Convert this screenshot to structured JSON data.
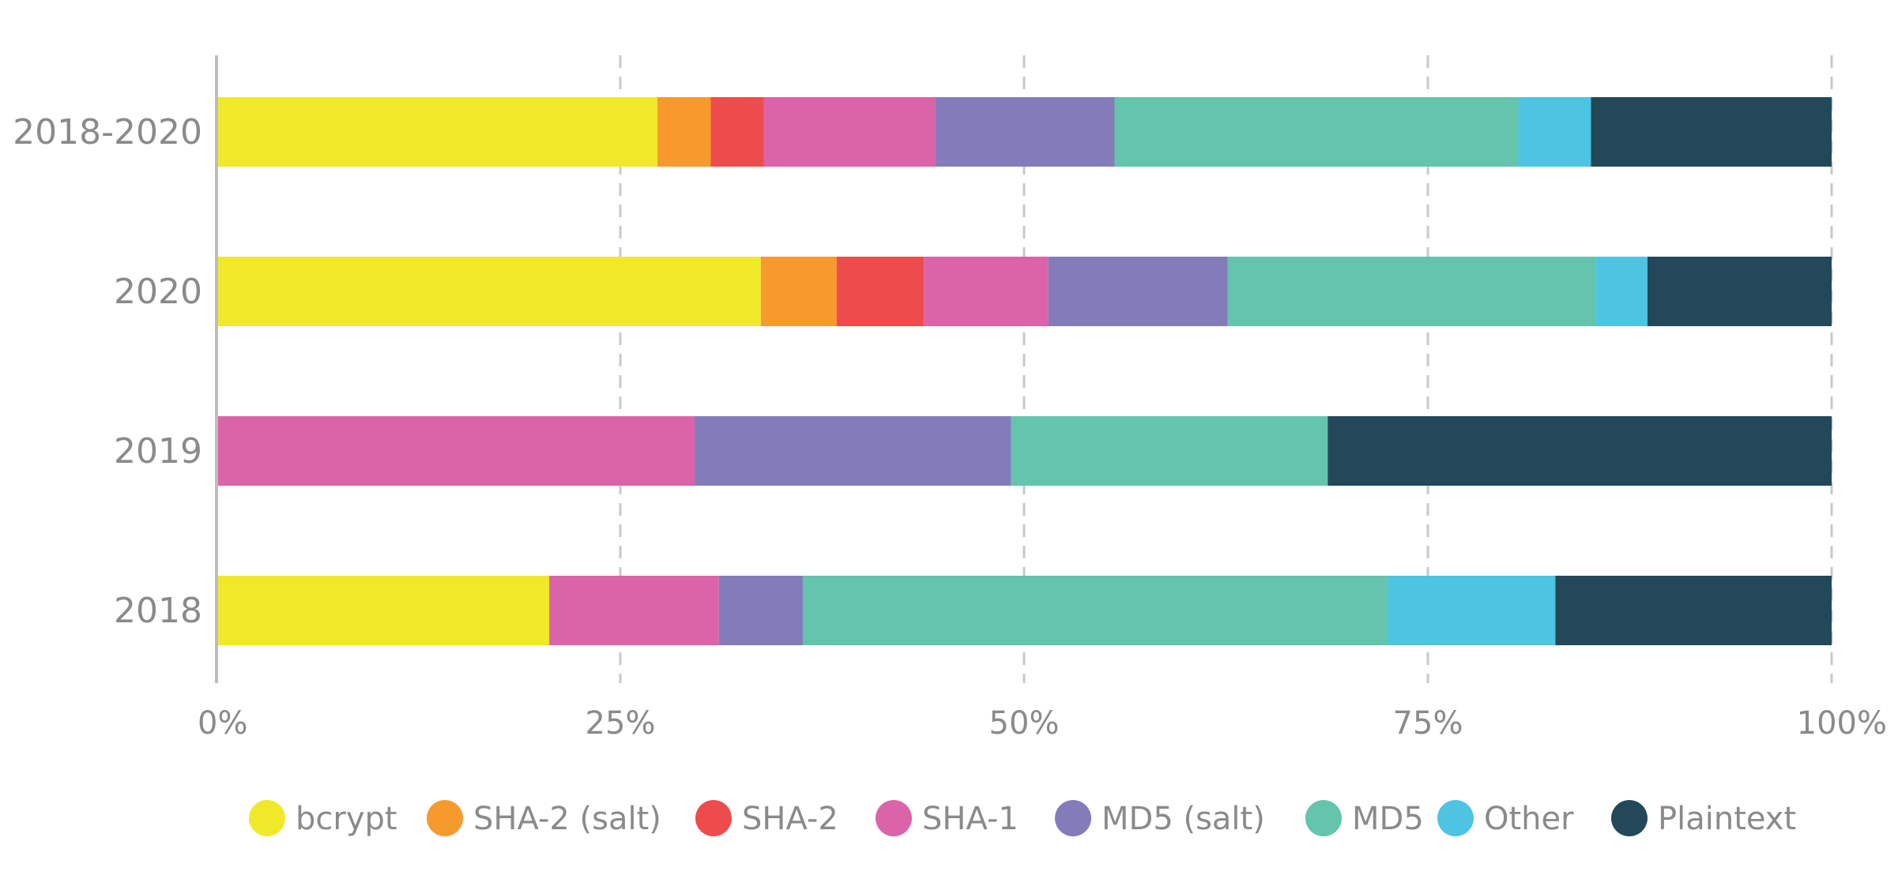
{
  "chart_data": {
    "type": "bar",
    "orientation": "horizontal",
    "stacked": true,
    "normalized": true,
    "categories": [
      "2018-2020",
      "2020",
      "2019",
      "2018"
    ],
    "series": [
      {
        "name": "bcrypt",
        "color": "#f0e92a",
        "values": [
          27.3,
          33.7,
          0,
          20.6
        ]
      },
      {
        "name": "SHA-2 (salt)",
        "color": "#f79a2e",
        "values": [
          3.3,
          4.7,
          0,
          0
        ]
      },
      {
        "name": "SHA-2",
        "color": "#ee4c4c",
        "values": [
          3.3,
          5.4,
          0,
          0
        ]
      },
      {
        "name": "SHA-1",
        "color": "#db64a8",
        "values": [
          10.6,
          7.7,
          29.6,
          10.5
        ]
      },
      {
        "name": "MD5 (salt)",
        "color": "#847cba",
        "values": [
          11.1,
          11.1,
          19.6,
          5.2
        ]
      },
      {
        "name": "MD5",
        "color": "#64c4ac",
        "values": [
          25.0,
          22.8,
          19.6,
          36.2
        ]
      },
      {
        "name": "Other",
        "color": "#4cc4e2",
        "values": [
          4.5,
          3.2,
          0,
          10.4
        ]
      },
      {
        "name": "Plaintext",
        "color": "#234859",
        "values": [
          14.9,
          11.4,
          31.2,
          17.1
        ]
      }
    ],
    "xlim": [
      0,
      100
    ],
    "xticks": [
      "0%",
      "25%",
      "50%",
      "75%",
      "100%"
    ],
    "grid": "vertical dashed",
    "legend": "bottom",
    "axis_color": "#bdbdbd",
    "text_color": "#8a8a8a"
  }
}
